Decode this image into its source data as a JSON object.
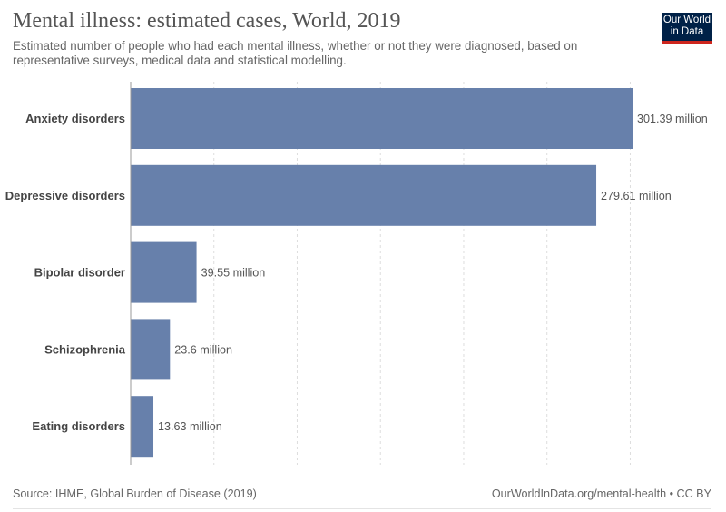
{
  "header": {
    "title": "Mental illness: estimated cases, World, 2019",
    "subtitle": "Estimated number of people who had each mental illness, whether or not they were diagnosed, based on representative surveys, medical data and statistical modelling."
  },
  "logo": {
    "line1": "Our World",
    "line2": "in Data"
  },
  "footer": {
    "source": "Source: IHME, Global Burden of Disease (2019)",
    "link": "OurWorldInData.org/mental-health • CC BY"
  },
  "colors": {
    "bar": "#6780ab",
    "grid": "#dddddd",
    "axis": "#999999"
  },
  "chart_data": {
    "type": "bar",
    "orientation": "horizontal",
    "title": "Mental illness: estimated cases, World, 2019",
    "categories": [
      "Anxiety disorders",
      "Depressive disorders",
      "Bipolar disorder",
      "Schizophrenia",
      "Eating disorders"
    ],
    "values": [
      301.39,
      279.61,
      39.55,
      23.6,
      13.63
    ],
    "value_labels": [
      "301.39 million",
      "279.61 million",
      "39.55 million",
      "23.6 million",
      "13.63 million"
    ],
    "unit": "million",
    "xlim": [
      0,
      301.39
    ],
    "gridlines": [
      0,
      50,
      100,
      150,
      200,
      250,
      300
    ],
    "grid": true,
    "legend": "none"
  }
}
